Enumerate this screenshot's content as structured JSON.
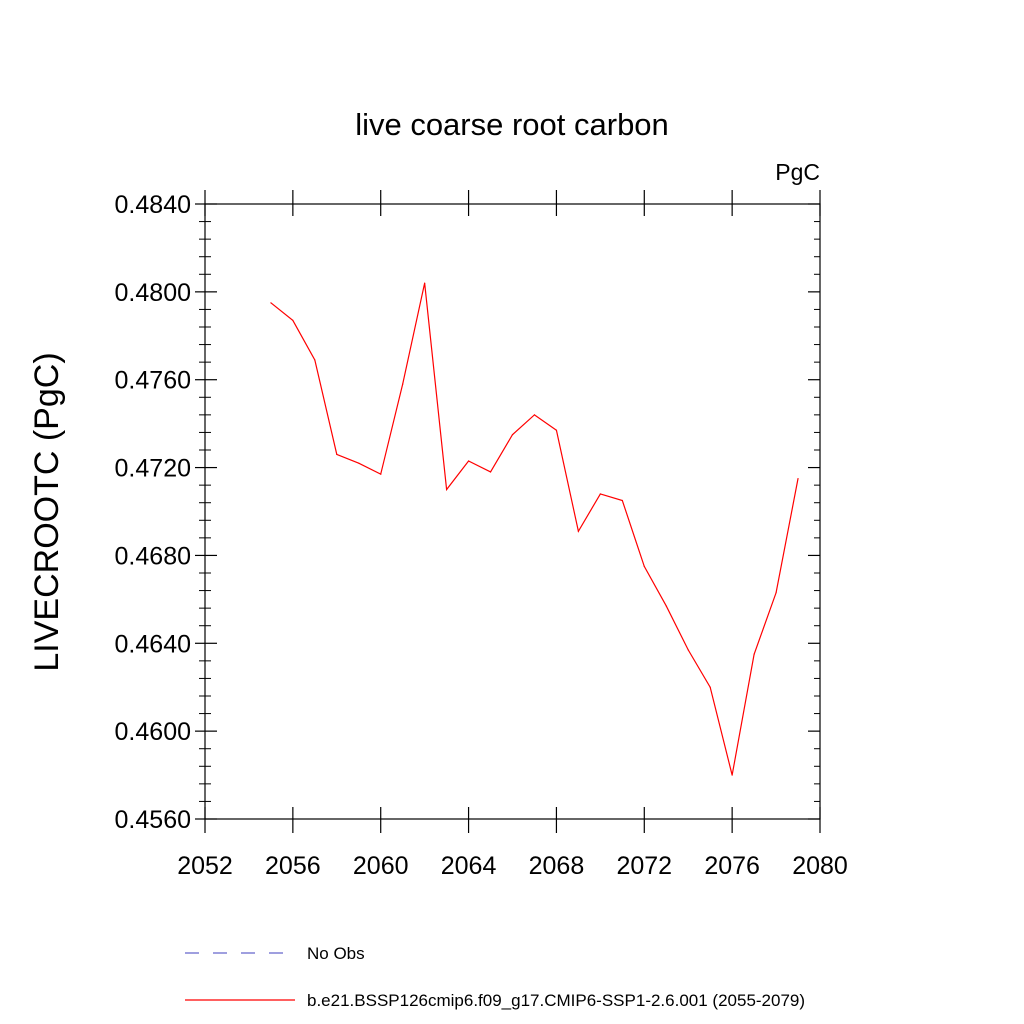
{
  "chart_data": {
    "type": "line",
    "title": "live coarse root carbon",
    "units_label": "PgC",
    "xlabel": "",
    "ylabel": "LIVECROOTC  (PgC)",
    "xlim": [
      2052,
      2080
    ],
    "ylim": [
      0.456,
      0.484
    ],
    "x_ticks": [
      2052,
      2056,
      2060,
      2064,
      2068,
      2072,
      2076,
      2080
    ],
    "x_tick_labels": [
      "2052",
      "2056",
      "2060",
      "2064",
      "2068",
      "2072",
      "2076",
      "2080"
    ],
    "y_ticks": [
      0.456,
      0.46,
      0.464,
      0.468,
      0.472,
      0.476,
      0.48,
      0.484
    ],
    "y_tick_labels": [
      "0.4560",
      "0.4600",
      "0.4640",
      "0.4680",
      "0.4720",
      "0.4760",
      "0.4800",
      "0.4840"
    ],
    "grid": false,
    "series": [
      {
        "name": "b.e21.BSSP126cmip6.f09_g17.CMIP6-SSP1-2.6.001 (2055-2079)",
        "color": "#ff0000",
        "style": "solid",
        "x": [
          2055,
          2056,
          2057,
          2058,
          2059,
          2060,
          2061,
          2062,
          2063,
          2064,
          2065,
          2066,
          2067,
          2068,
          2069,
          2070,
          2071,
          2072,
          2073,
          2074,
          2075,
          2076,
          2077,
          2078,
          2079
        ],
        "y": [
          0.4795,
          0.4787,
          0.4769,
          0.4726,
          0.4722,
          0.4717,
          0.4758,
          0.4804,
          0.471,
          0.4723,
          0.4718,
          0.4735,
          0.4744,
          0.4737,
          0.4691,
          0.4708,
          0.4705,
          0.4675,
          0.4657,
          0.4637,
          0.462,
          0.458,
          0.4635,
          0.4663,
          0.4715
        ]
      }
    ],
    "legend": {
      "placement": "bottom",
      "entries": [
        {
          "label": "No Obs",
          "color": "#6666cc",
          "style": "dashed"
        },
        {
          "label": "b.e21.BSSP126cmip6.f09_g17.CMIP6-SSP1-2.6.001 (2055-2079)",
          "color": "#ff0000",
          "style": "solid"
        }
      ]
    }
  }
}
